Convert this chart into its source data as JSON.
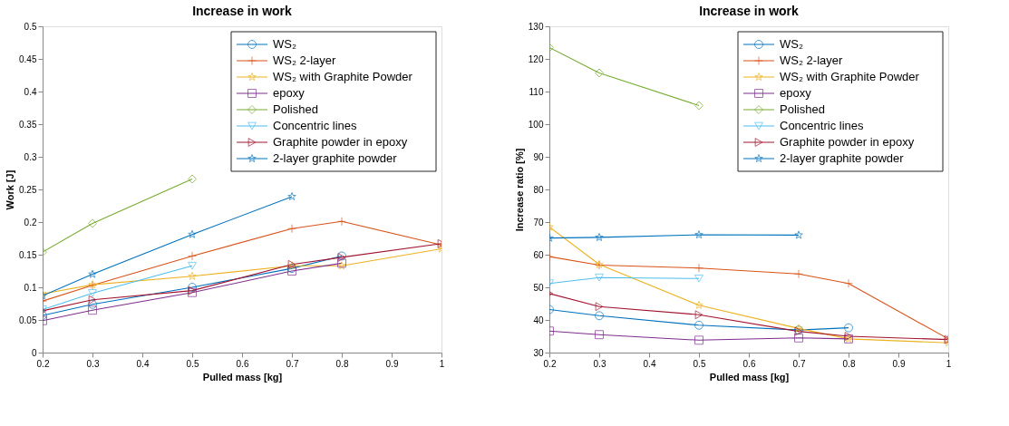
{
  "chart_data": [
    {
      "type": "line",
      "title": "Increase in work",
      "xlabel": "Pulled mass [kg]",
      "ylabel": "Work [J]",
      "xlim": [
        0.2,
        1
      ],
      "xticks": [
        0.2,
        0.3,
        0.4,
        0.5,
        0.6,
        0.7,
        0.8,
        0.9,
        1
      ],
      "ylim": [
        0,
        0.5
      ],
      "yticks": [
        0,
        0.05,
        0.1,
        0.15,
        0.2,
        0.25,
        0.3,
        0.35,
        0.4,
        0.45,
        0.5
      ],
      "grid": false,
      "legend": "top right",
      "series": [
        {
          "name": "WS₂",
          "color": "#0072bd",
          "marker": "circle",
          "x": [
            0.2,
            0.3,
            0.5,
            0.7,
            0.8
          ],
          "values": [
            0.057,
            0.074,
            0.1,
            0.129,
            0.148
          ]
        },
        {
          "name": "WS₂ 2-layer",
          "color": "#d95319",
          "marker": "cross",
          "x": [
            0.2,
            0.3,
            0.5,
            0.7,
            0.8,
            1
          ],
          "values": [
            0.079,
            0.103,
            0.148,
            0.19,
            0.201,
            0.165
          ]
        },
        {
          "name": "WS₂ with Graphite Powder",
          "color": "#edb120",
          "marker": "star",
          "x": [
            0.2,
            0.3,
            0.5,
            0.7,
            0.8,
            1
          ],
          "values": [
            0.09,
            0.104,
            0.117,
            0.133,
            0.133,
            0.159
          ]
        },
        {
          "name": "epoxy",
          "color": "#7e2f8e",
          "marker": "square",
          "x": [
            0.2,
            0.3,
            0.5,
            0.7,
            0.8
          ],
          "values": [
            0.049,
            0.065,
            0.092,
            0.125,
            0.137
          ]
        },
        {
          "name": "Polished",
          "color": "#77ac30",
          "marker": "diamond",
          "x": [
            0.2,
            0.3,
            0.5
          ],
          "values": [
            0.154,
            0.198,
            0.266
          ]
        },
        {
          "name": "Concentric lines",
          "color": "#4dbeee",
          "marker": "triangle-down",
          "x": [
            0.2,
            0.3,
            0.5
          ],
          "values": [
            0.066,
            0.091,
            0.133
          ]
        },
        {
          "name": "Graphite powder in epoxy",
          "color": "#a2142f",
          "marker": "triangle-right",
          "x": [
            0.2,
            0.3,
            0.5,
            0.7,
            0.8,
            1
          ],
          "values": [
            0.064,
            0.081,
            0.095,
            0.135,
            0.146,
            0.167
          ]
        },
        {
          "name": "2-layer graphite powder",
          "color": "#0072bd",
          "marker": "star",
          "x": [
            0.2,
            0.3,
            0.5,
            0.7
          ],
          "values": [
            0.087,
            0.12,
            0.181,
            0.239
          ]
        }
      ]
    },
    {
      "type": "line",
      "title": "Increase in work",
      "xlabel": "Pulled mass [kg]",
      "ylabel": "Increase ratio [%]",
      "xlim": [
        0.2,
        1
      ],
      "xticks": [
        0.2,
        0.3,
        0.4,
        0.5,
        0.6,
        0.7,
        0.8,
        0.9,
        1
      ],
      "ylim": [
        30,
        130
      ],
      "yticks": [
        30,
        40,
        50,
        60,
        70,
        80,
        90,
        100,
        110,
        120,
        130
      ],
      "grid": false,
      "legend": "top right",
      "series": [
        {
          "name": "WS₂",
          "color": "#0072bd",
          "marker": "circle",
          "x": [
            0.2,
            0.3,
            0.5,
            0.7,
            0.8
          ],
          "values": [
            43.2,
            41.3,
            38.4,
            36.9,
            37.6
          ]
        },
        {
          "name": "WS₂ 2-layer",
          "color": "#d95319",
          "marker": "cross",
          "x": [
            0.2,
            0.3,
            0.5,
            0.7,
            0.8,
            1
          ],
          "values": [
            59.4,
            56.8,
            55.9,
            54.1,
            51.2,
            34.2
          ]
        },
        {
          "name": "WS₂ with Graphite Powder",
          "color": "#edb120",
          "marker": "star",
          "x": [
            0.2,
            0.3,
            0.5,
            0.7,
            0.8,
            1
          ],
          "values": [
            68.5,
            57.0,
            44.5,
            37.4,
            34.2,
            33.0
          ]
        },
        {
          "name": "epoxy",
          "color": "#7e2f8e",
          "marker": "square",
          "x": [
            0.2,
            0.3,
            0.5,
            0.7,
            0.8
          ],
          "values": [
            36.6,
            35.5,
            33.8,
            34.5,
            34.2
          ]
        },
        {
          "name": "Polished",
          "color": "#77ac30",
          "marker": "diamond",
          "x": [
            0.2,
            0.3,
            0.5
          ],
          "values": [
            123.5,
            115.7,
            105.7
          ]
        },
        {
          "name": "Concentric lines",
          "color": "#4dbeee",
          "marker": "triangle-down",
          "x": [
            0.2,
            0.3,
            0.5
          ],
          "values": [
            51.2,
            53.0,
            52.7
          ]
        },
        {
          "name": "Graphite powder in epoxy",
          "color": "#a2142f",
          "marker": "triangle-right",
          "x": [
            0.2,
            0.3,
            0.5,
            0.7,
            0.8,
            1
          ],
          "values": [
            48.1,
            44.1,
            41.6,
            36.5,
            35.0,
            34.0
          ]
        },
        {
          "name": "2-layer graphite powder",
          "color": "#0072bd",
          "marker": "star",
          "x": [
            0.2,
            0.3,
            0.5,
            0.7
          ],
          "values": [
            65.1,
            65.3,
            66.1,
            66.0
          ]
        }
      ]
    }
  ]
}
